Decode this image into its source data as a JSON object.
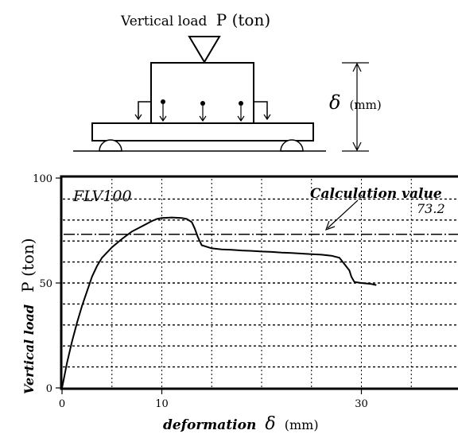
{
  "diagram": {
    "load_label_prefix": "Vertical load",
    "load_label_symbol": "P (ton)",
    "deflection_symbol": "δ",
    "deflection_unit": "(mm)"
  },
  "chart_data": {
    "type": "line",
    "specimen_label": "FLV100",
    "xlabel_word": "deformation",
    "xlabel_symbol": "δ",
    "xlabel_unit": "(mm)",
    "ylabel_word": "Vertical load",
    "ylabel_symbol": "P (ton)",
    "xlim": [
      0,
      40
    ],
    "ylim": [
      0,
      100
    ],
    "x_ticks": [
      0,
      10,
      30
    ],
    "y_ticks": [
      0,
      50,
      100
    ],
    "x_gridlines": [
      5,
      10,
      15,
      20,
      25,
      30,
      35
    ],
    "y_gridlines": [
      10,
      20,
      30,
      40,
      50,
      60,
      70,
      80,
      90
    ],
    "grid": true,
    "calculation": {
      "label": "Calculation value",
      "value": 73.2,
      "value_label": "73.2"
    },
    "series": [
      {
        "x": [
          0,
          0.5,
          1,
          1.5,
          2,
          2.5,
          3,
          3.5,
          4,
          5,
          6,
          7,
          8,
          9,
          9.5,
          10,
          11,
          12,
          12.5,
          13,
          13.3,
          13.6,
          14,
          15,
          16,
          17,
          18,
          19,
          20,
          21,
          22,
          23,
          24,
          25,
          26,
          27,
          27.8,
          28.3,
          28.8,
          29,
          29.3,
          30,
          31,
          31.5
        ],
        "y": [
          0,
          12,
          22,
          31,
          39,
          46,
          53,
          58,
          62,
          67,
          71,
          74.5,
          77,
          79.5,
          80.5,
          81,
          81.2,
          81,
          80.5,
          79,
          76,
          72,
          68,
          66.5,
          66,
          65.8,
          65.5,
          65.3,
          65,
          64.8,
          64.5,
          64.3,
          64,
          63.7,
          63.5,
          63,
          62,
          59,
          56,
          53,
          50.5,
          50,
          49.5,
          49
        ]
      }
    ]
  }
}
